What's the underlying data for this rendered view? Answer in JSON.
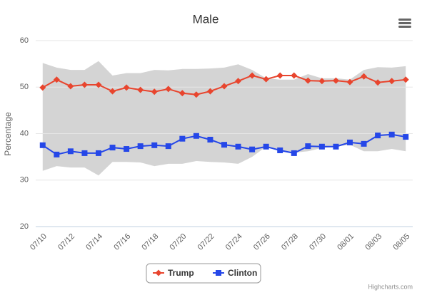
{
  "chart_data": {
    "type": "line",
    "title": "Male",
    "y_label": "Percentage",
    "credits": "Highcharts.com",
    "categories": [
      "07/10",
      null,
      "07/12",
      null,
      "07/14",
      null,
      "07/16",
      null,
      "07/18",
      null,
      "07/20",
      null,
      "07/22",
      null,
      "07/24",
      null,
      "07/26",
      null,
      "07/28",
      null,
      "07/30",
      null,
      "08/01",
      null,
      "08/03",
      null,
      "08/05"
    ],
    "series": [
      {
        "name": "Trump",
        "color": "#e8452e",
        "marker": "diamond",
        "values": [
          49.9,
          51.6,
          50.2,
          50.5,
          50.5,
          49.1,
          49.9,
          49.4,
          49.0,
          49.6,
          48.7,
          48.4,
          49.1,
          50.2,
          51.3,
          52.5,
          51.7,
          52.5,
          52.5,
          51.4,
          51.3,
          51.4,
          51.1,
          52.3,
          51.0,
          51.3,
          51.6
        ]
      },
      {
        "name": "Clinton",
        "color": "#2547e8",
        "marker": "square",
        "values": [
          37.5,
          35.5,
          36.2,
          35.8,
          35.8,
          37.0,
          36.7,
          37.3,
          37.5,
          37.3,
          38.9,
          39.5,
          38.7,
          37.6,
          37.2,
          36.6,
          37.2,
          36.4,
          35.8,
          37.3,
          37.2,
          37.2,
          38.1,
          37.8,
          39.6,
          39.8,
          39.3
        ]
      }
    ],
    "range": {
      "color": "#d4d4d4",
      "high": [
        55.2,
        54.2,
        53.7,
        53.7,
        55.6,
        52.5,
        53.0,
        53.0,
        53.7,
        53.6,
        53.9,
        53.9,
        54.0,
        54.2,
        54.9,
        53.7,
        51.9,
        51.6,
        51.6,
        52.8,
        51.9,
        51.9,
        51.6,
        53.7,
        54.3,
        54.2,
        54.5
      ],
      "low": [
        32.0,
        33.0,
        32.7,
        32.7,
        31.0,
        33.9,
        33.9,
        33.8,
        33.0,
        33.5,
        33.5,
        34.1,
        33.9,
        33.8,
        33.5,
        35.0,
        37.2,
        36.4,
        35.9,
        36.2,
        36.9,
        37.2,
        37.6,
        36.2,
        36.2,
        36.7,
        36.2
      ]
    },
    "ylim": [
      20,
      60
    ],
    "yticks": [
      20,
      30,
      40,
      50,
      60
    ],
    "grid": true
  }
}
